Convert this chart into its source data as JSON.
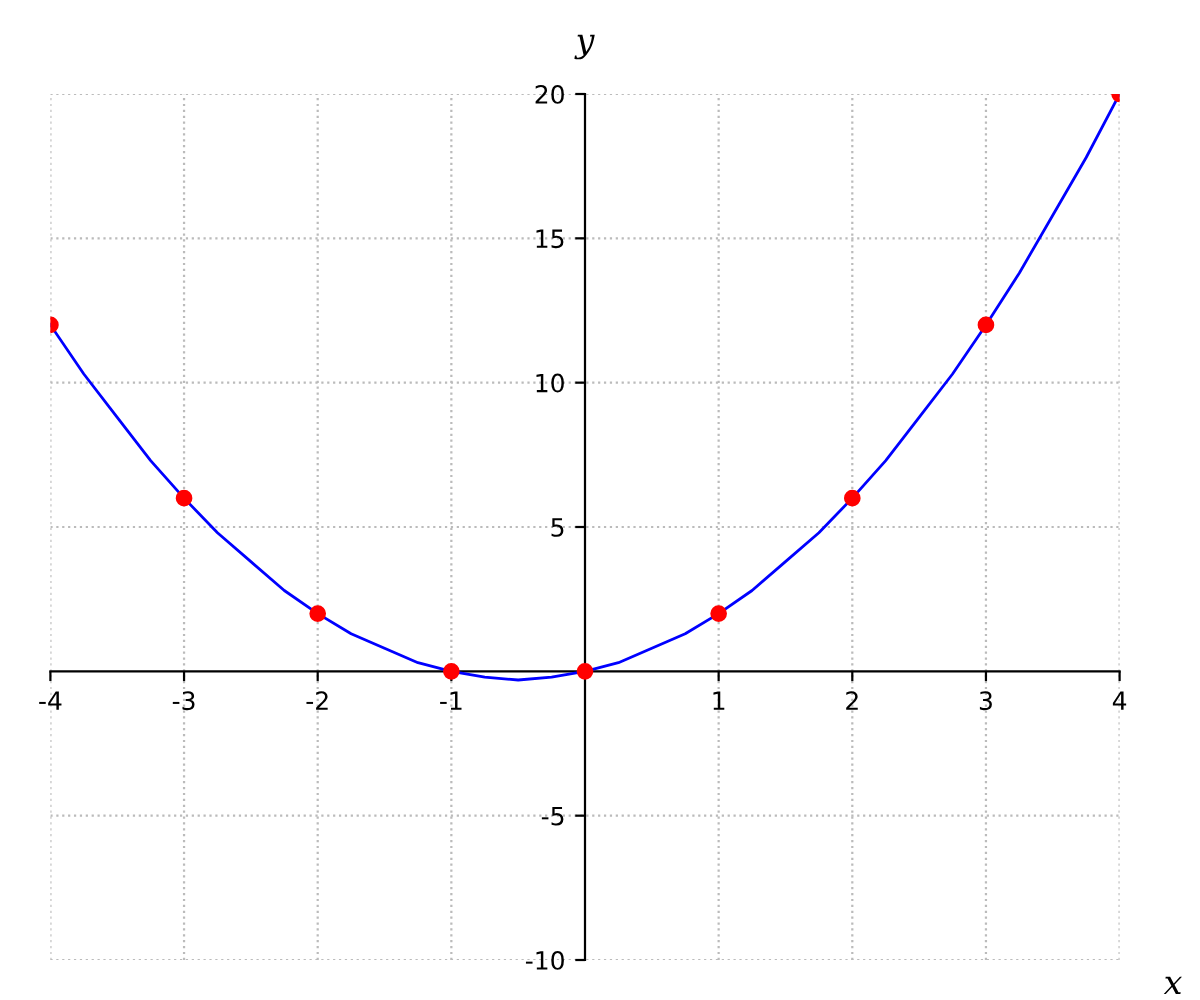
{
  "chart_data": {
    "type": "line",
    "xlabel": "x",
    "ylabel": "y",
    "series": [
      {
        "color": "#0000ff",
        "marker": "none",
        "x": [
          -4,
          -3.75,
          -3.5,
          -3.25,
          -3,
          -2.75,
          -2.5,
          -2.25,
          -2,
          -1.75,
          -1.5,
          -1.25,
          -1,
          -0.75,
          -0.5,
          -0.25,
          0,
          0.25,
          0.5,
          0.75,
          1,
          1.25,
          1.5,
          1.75,
          2,
          2.25,
          2.5,
          2.75,
          3,
          3.25,
          3.5,
          3.75,
          4
        ],
        "values": [
          12,
          10.3,
          8.8,
          7.3,
          6,
          4.8,
          3.8,
          2.8,
          2,
          1.3,
          0.8,
          0.3,
          0,
          -0.2,
          -0.3,
          -0.2,
          0,
          0.3,
          0.8,
          1.3,
          2,
          2.8,
          3.8,
          4.8,
          6,
          7.3,
          8.8,
          10.3,
          12,
          13.8,
          15.8,
          17.8,
          20
        ]
      },
      {
        "type": "scatter",
        "color": "#ff0000",
        "marker": "circle",
        "x": [
          -4,
          -3,
          -2,
          -1,
          0,
          1,
          2,
          3,
          4
        ],
        "values": [
          12,
          6,
          2,
          0,
          0,
          2,
          6,
          12,
          20
        ]
      }
    ],
    "xlim": [
      -4,
      4
    ],
    "ylim": [
      -10,
      20
    ],
    "xticks": [
      -4,
      -3,
      -2,
      -1,
      1,
      2,
      3,
      4
    ],
    "yticks": [
      -10,
      -5,
      5,
      10,
      15,
      20
    ],
    "grid": true,
    "line_style": "solid"
  }
}
